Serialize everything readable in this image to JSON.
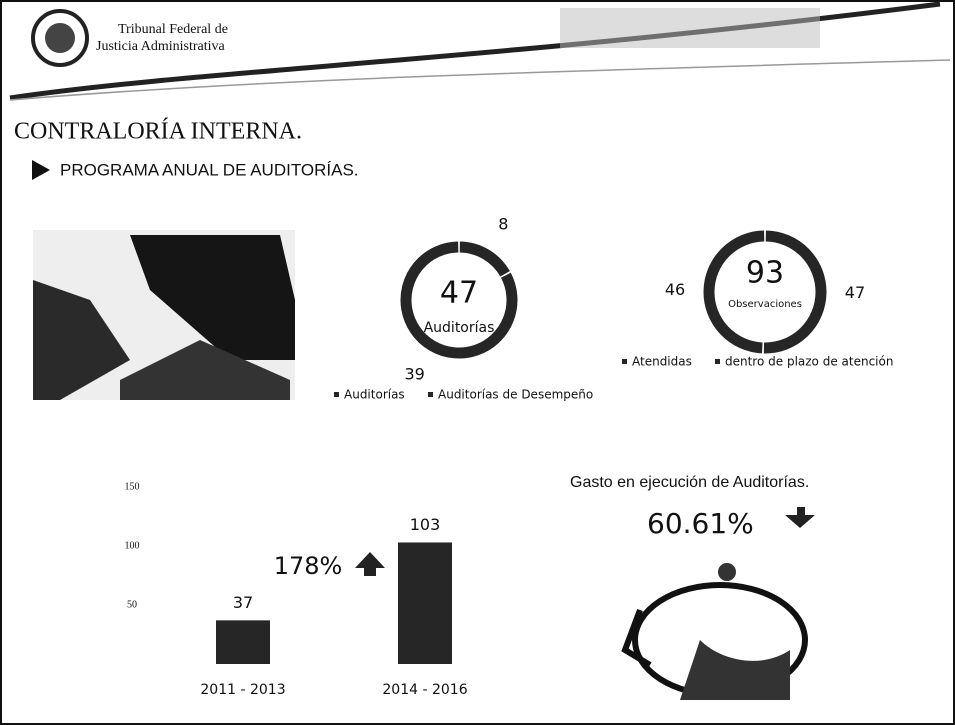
{
  "header": {
    "org_line1": "Tribunal Federal de",
    "org_line2": "Justicia Administrativa"
  },
  "title": "CONTRALORÍA INTERNA.",
  "subtitle": "PROGRAMA ANUAL DE AUDITORÍAS.",
  "spending": {
    "title": "Gasto en ejecución de Auditorías.",
    "change": "60.61%"
  },
  "chart_data": [
    {
      "type": "donut",
      "total": 47,
      "center_label": "Auditorías",
      "categories": [
        "Auditorías",
        "Auditorías de Desempeño"
      ],
      "values": [
        39,
        8
      ],
      "colors": [
        "#262626",
        "#262626"
      ]
    },
    {
      "type": "donut",
      "total": 93,
      "center_label": "Observaciones",
      "categories": [
        "Atendidas",
        "dentro de plazo de atención"
      ],
      "values": [
        46,
        47
      ],
      "colors": [
        "#262626",
        "#262626"
      ]
    },
    {
      "type": "bar",
      "categories": [
        "2011 - 2013",
        "2014 - 2016"
      ],
      "values": [
        37,
        103
      ],
      "color": "#262626",
      "ylim": [
        0,
        150
      ],
      "yticks": [
        50,
        100,
        150
      ],
      "annotation": "178%"
    }
  ]
}
